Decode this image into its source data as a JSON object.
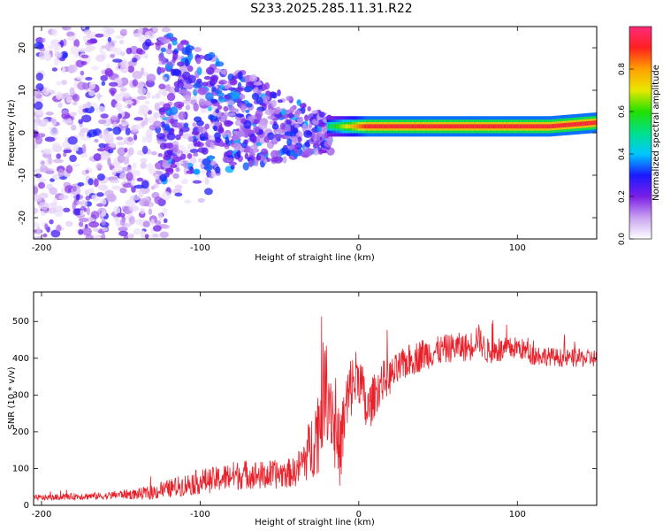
{
  "figure": {
    "title": "S233.2025.285.11.31.R22"
  },
  "chart_data": [
    {
      "type": "heatmap",
      "title": "",
      "xlabel": "Height of straight line (km)",
      "ylabel": "Frequency (Hz)",
      "xlim": [
        -205,
        150
      ],
      "ylim": [
        -25,
        25
      ],
      "xticks": [
        -200,
        -100,
        0,
        100
      ],
      "yticks": [
        -20,
        -10,
        0,
        10,
        20
      ],
      "colorbar": {
        "label": "Normalized spectral amplitude",
        "range": [
          0,
          1
        ],
        "ticks": [
          0.0,
          0.2,
          0.4,
          0.6,
          0.8
        ],
        "colors": [
          "#ffffff",
          "#c9a2f0",
          "#7b1ee6",
          "#1a1aff",
          "#00c8ff",
          "#00e08a",
          "#22e000",
          "#e8e800",
          "#ffa000",
          "#ff2020",
          "#ff2a7a"
        ]
      },
      "description_regions": [
        {
          "x_range": [
            -205,
            -120
          ],
          "freq_range": [
            -25,
            25
          ],
          "amplitude": "low (0.05-0.3) scattered"
        },
        {
          "x_range": [
            -120,
            -20
          ],
          "freq_range": [
            -15,
            15
          ],
          "amplitude": "moderate (0.2-0.4) band converging to ~1 Hz"
        },
        {
          "x_range": [
            -20,
            150
          ],
          "freq_range": [
            1,
            3
          ],
          "amplitude": "high (0.8-1.0) narrow band near 1.5 Hz"
        }
      ]
    },
    {
      "type": "line",
      "title": "",
      "xlabel": "Height of straight line (km)",
      "ylabel": "SNR (10 * v/v)",
      "xlim": [
        -205,
        150
      ],
      "ylim": [
        0,
        580
      ],
      "xticks": [
        -200,
        -100,
        0,
        100
      ],
      "yticks": [
        0,
        100,
        200,
        300,
        400,
        500
      ],
      "color": "#e8202a",
      "series": [
        {
          "name": "SNR",
          "x": [
            -205,
            -190,
            -175,
            -160,
            -150,
            -140,
            -130,
            -120,
            -110,
            -100,
            -90,
            -80,
            -70,
            -60,
            -50,
            -40,
            -35,
            -30,
            -25,
            -22,
            -18,
            -15,
            -12,
            -8,
            -5,
            0,
            5,
            10,
            15,
            20,
            30,
            40,
            50,
            60,
            70,
            75,
            80,
            90,
            100,
            110,
            120,
            130,
            140,
            150
          ],
          "values": [
            20,
            22,
            25,
            25,
            30,
            30,
            35,
            45,
            55,
            65,
            70,
            80,
            85,
            80,
            85,
            90,
            120,
            160,
            220,
            320,
            300,
            200,
            150,
            260,
            320,
            360,
            250,
            300,
            340,
            350,
            390,
            410,
            420,
            430,
            430,
            460,
            420,
            420,
            430,
            410,
            405,
            400,
            400,
            400
          ]
        }
      ],
      "noise_amplitude": [
        8,
        8,
        10,
        10,
        12,
        15,
        20,
        25,
        30,
        35,
        35,
        40,
        40,
        40,
        40,
        40,
        60,
        90,
        130,
        140,
        130,
        120,
        100,
        110,
        90,
        80,
        70,
        60,
        55,
        50,
        45,
        45,
        40,
        40,
        40,
        40,
        35,
        35,
        30,
        30,
        25,
        25,
        25,
        25
      ]
    }
  ]
}
